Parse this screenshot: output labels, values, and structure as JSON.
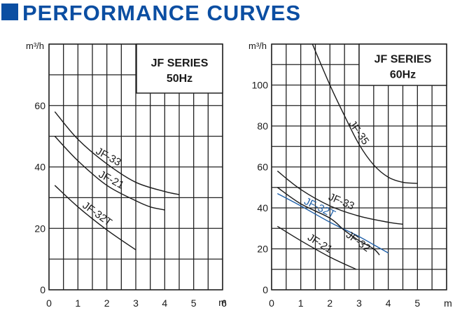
{
  "header": {
    "title": "PERFORMANCE CURVES"
  },
  "chart_data": [
    {
      "type": "line",
      "title": "JF SERIES",
      "subtitle": "50Hz",
      "ylabel": "m³/h",
      "xlabel": "m",
      "xlim": [
        0,
        6
      ],
      "ylim": [
        0,
        80
      ],
      "xticks": [
        "0",
        "1",
        "2",
        "3",
        "4",
        "5",
        "6"
      ],
      "yticks": [
        {
          "value": 0,
          "label": "0"
        },
        {
          "value": 20,
          "label": "20"
        },
        {
          "value": 40,
          "label": "40"
        },
        {
          "value": 60,
          "label": "60"
        }
      ],
      "grid": true,
      "series": [
        {
          "name": "JF-33",
          "color": "#1a1a1a",
          "points": [
            [
              0.2,
              58
            ],
            [
              1.0,
              49
            ],
            [
              2.0,
              41
            ],
            [
              3.0,
              35
            ],
            [
              4.0,
              32
            ],
            [
              4.5,
              31
            ]
          ]
        },
        {
          "name": "JF-21",
          "color": "#1a1a1a",
          "points": [
            [
              0.2,
              50
            ],
            [
              1.0,
              42
            ],
            [
              2.0,
              34
            ],
            [
              3.0,
              29
            ],
            [
              3.5,
              27
            ],
            [
              4.0,
              26
            ]
          ]
        },
        {
          "name": "JF-32T",
          "color": "#1a1a1a",
          "points": [
            [
              0.2,
              34
            ],
            [
              1.0,
              27
            ],
            [
              2.0,
              19.5
            ],
            [
              3.0,
              13
            ]
          ]
        }
      ]
    },
    {
      "type": "line",
      "title": "JF SERIES",
      "subtitle": "60Hz",
      "ylabel": "m³/h",
      "xlabel": "m",
      "xlim": [
        0,
        6
      ],
      "ylim": [
        0,
        120
      ],
      "xticks": [
        "0",
        "1",
        "2",
        "3",
        "4",
        "5",
        "m"
      ],
      "yticks": [
        {
          "value": 0,
          "label": "0"
        },
        {
          "value": 20,
          "label": "20"
        },
        {
          "value": 40,
          "label": "40"
        },
        {
          "value": 60,
          "label": "60"
        },
        {
          "value": 80,
          "label": "80"
        },
        {
          "value": 100,
          "label": "100"
        }
      ],
      "grid": true,
      "series": [
        {
          "name": "JF-35",
          "color": "#1a1a1a",
          "points": [
            [
              1.4,
              120
            ],
            [
              2.0,
              100
            ],
            [
              2.5,
              85
            ],
            [
              3.0,
              71
            ],
            [
              3.5,
              61
            ],
            [
              4.0,
              55
            ],
            [
              4.5,
              52.5
            ],
            [
              5.0,
              52
            ]
          ]
        },
        {
          "name": "JF-33",
          "color": "#1a1a1a",
          "points": [
            [
              0.2,
              58
            ],
            [
              1.0,
              49
            ],
            [
              2.0,
              41
            ],
            [
              3.0,
              36
            ],
            [
              4.0,
              33
            ],
            [
              4.5,
              32
            ]
          ]
        },
        {
          "name": "JF-32T",
          "color": "#1f5fa8",
          "points": [
            [
              0.2,
              47
            ],
            [
              1.0,
              41
            ],
            [
              2.0,
              33
            ],
            [
              3.0,
              26
            ],
            [
              3.5,
              22
            ],
            [
              4.0,
              18
            ]
          ]
        },
        {
          "name": "JF-32",
          "color": "#1a1a1a",
          "points": [
            [
              0.2,
              50
            ],
            [
              1.0,
              42
            ],
            [
              2.0,
              35
            ],
            [
              2.5,
              29
            ],
            [
              3.0,
              24
            ],
            [
              3.5,
              20
            ],
            [
              3.7,
              17
            ]
          ]
        },
        {
          "name": "JF-21",
          "color": "#1a1a1a",
          "points": [
            [
              0.2,
              31
            ],
            [
              1.0,
              24
            ],
            [
              2.0,
              16
            ],
            [
              2.9,
              10
            ]
          ]
        }
      ]
    }
  ]
}
